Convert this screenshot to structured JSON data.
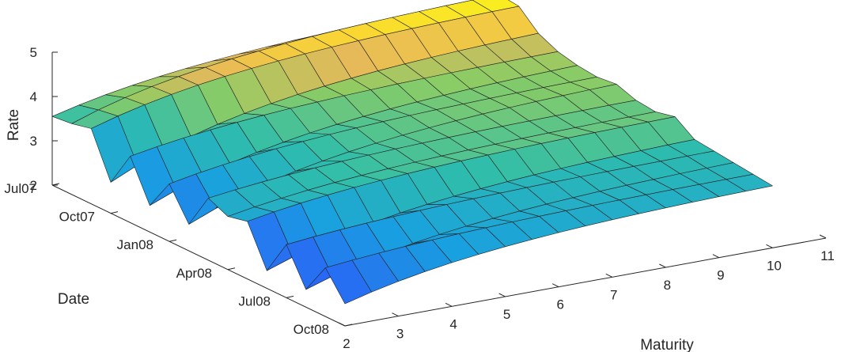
{
  "chart_data": {
    "type": "surface",
    "title": "",
    "xlabel": "Maturity",
    "ylabel": "Date",
    "zlabel": "Rate",
    "colormap": "parula",
    "grid": false,
    "x_ticks": [
      "2",
      "3",
      "4",
      "5",
      "6",
      "7",
      "8",
      "9",
      "10",
      "11"
    ],
    "y_ticks": [
      "Jul07",
      "Oct07",
      "Jan08",
      "Apr08",
      "Jul08",
      "Oct08"
    ],
    "z_ticks": [
      "2",
      "3",
      "4",
      "5"
    ],
    "xlim": [
      2,
      11
    ],
    "ylim": [
      "Jul07",
      "Oct08"
    ],
    "zlim": [
      2,
      5
    ],
    "maturity": [
      2,
      2.5,
      3,
      3.5,
      4,
      4.5,
      5,
      5.5,
      6,
      6.5,
      7,
      7.5,
      8,
      8.5,
      9,
      9.5,
      10
    ],
    "dates": [
      "Jul07",
      "Aug07",
      "Sep07",
      "Oct07",
      "Nov07",
      "Dec07",
      "Jan08",
      "Feb08",
      "Mar08",
      "Apr08",
      "May08",
      "Jun08",
      "Jul08",
      "Aug08",
      "Sep08",
      "Oct08"
    ],
    "rate_at_maturity_2": [
      3.55,
      3.6,
      3.7,
      2.7,
      3.5,
      2.6,
      3.3,
      2.6,
      3.4,
      3.2,
      3.3,
      2.4,
      3.2,
      2.4,
      3.1,
      2.5
    ],
    "rate_at_maturity_10": [
      4.4,
      4.75,
      4.7,
      4.3,
      4.1,
      4.0,
      3.95,
      4.0,
      3.85,
      3.8,
      3.9,
      3.6,
      3.55,
      3.5,
      3.45,
      3.4
    ],
    "curve_shape": 0.35
  }
}
